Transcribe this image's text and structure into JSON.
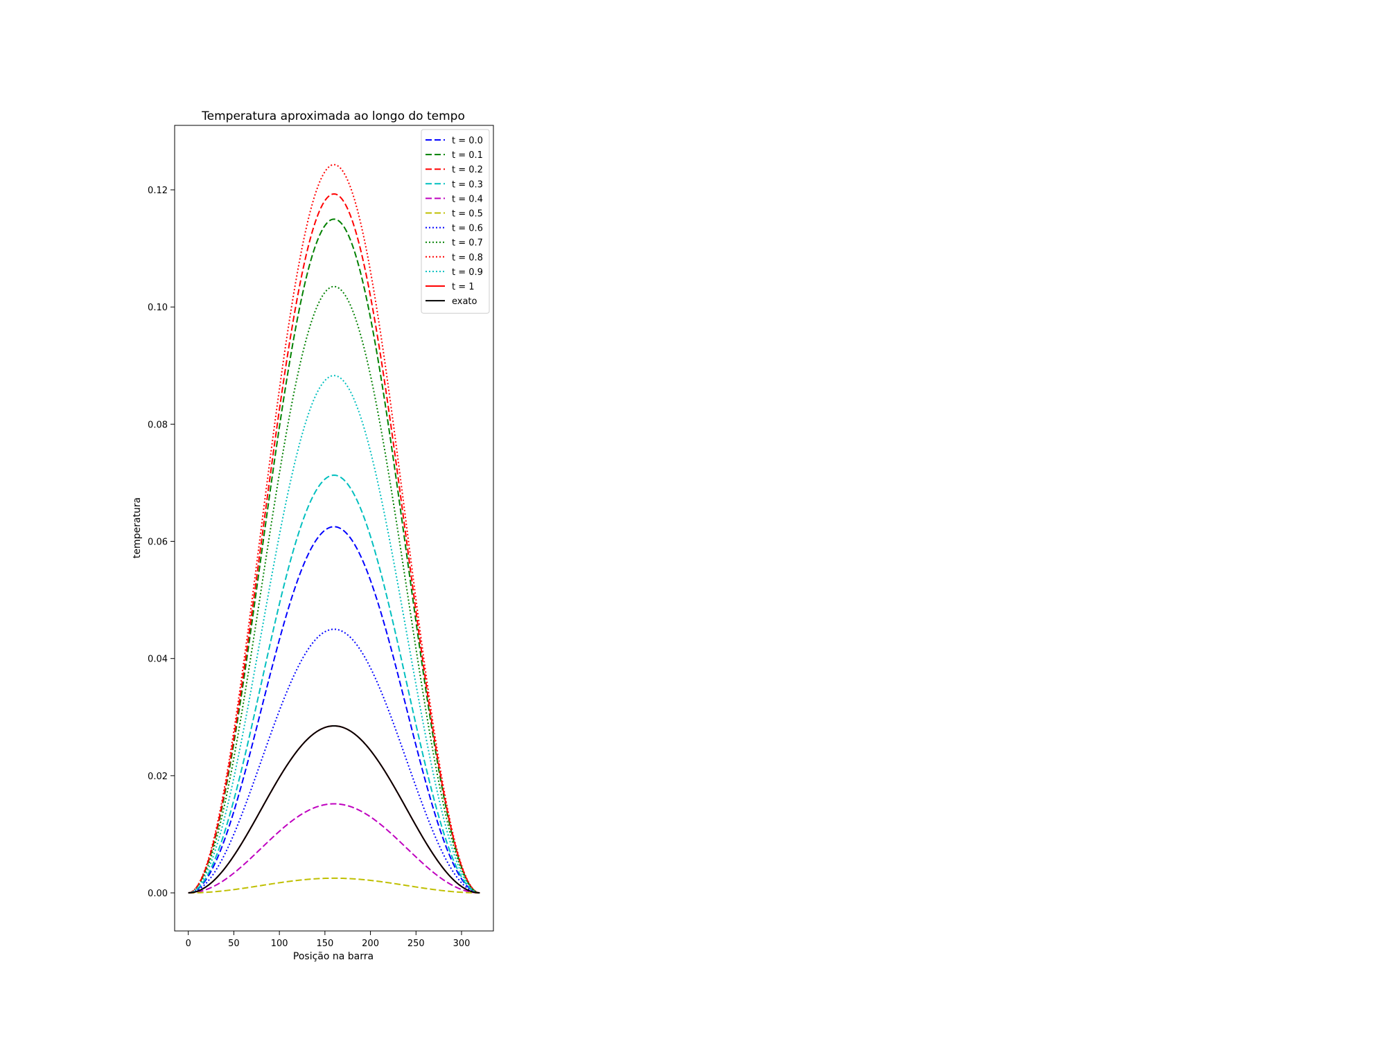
{
  "chart_data": {
    "type": "line",
    "title": "Temperatura aproximada ao longo do tempo",
    "xlabel": "Posição na barra",
    "ylabel": "temperatura",
    "xlim": [
      -15,
      335
    ],
    "ylim": [
      -0.0065,
      0.131
    ],
    "xticks": [
      0,
      50,
      100,
      150,
      200,
      250,
      300
    ],
    "yticks": [
      0.0,
      0.02,
      0.04,
      0.06,
      0.08,
      0.1,
      0.12
    ],
    "ytick_labels": [
      "0.00",
      "0.02",
      "0.04",
      "0.06",
      "0.08",
      "0.10",
      "0.12"
    ],
    "x_range": [
      0,
      320
    ],
    "profile": "sin^2",
    "legend_position": "top-right",
    "grid": false,
    "series": [
      {
        "name": "t = 0.0",
        "peak": 0.0625,
        "color": "#0000ff",
        "style": "dashed"
      },
      {
        "name": "t = 0.1",
        "peak": 0.115,
        "color": "#008000",
        "style": "dashed"
      },
      {
        "name": "t = 0.2",
        "peak": 0.1193,
        "color": "#ff0000",
        "style": "dashed"
      },
      {
        "name": "t = 0.3",
        "peak": 0.0713,
        "color": "#00bfbf",
        "style": "dashed"
      },
      {
        "name": "t = 0.4",
        "peak": 0.0152,
        "color": "#bf00bf",
        "style": "dashed"
      },
      {
        "name": "t = 0.5",
        "peak": 0.0025,
        "color": "#bfbf00",
        "style": "dashed"
      },
      {
        "name": "t = 0.6",
        "peak": 0.045,
        "color": "#0000ff",
        "style": "dotted"
      },
      {
        "name": "t = 0.7",
        "peak": 0.1035,
        "color": "#008000",
        "style": "dotted"
      },
      {
        "name": "t = 0.8",
        "peak": 0.1243,
        "color": "#ff0000",
        "style": "dotted"
      },
      {
        "name": "t = 0.9",
        "peak": 0.0883,
        "color": "#00bfbf",
        "style": "dotted"
      },
      {
        "name": "t = 1",
        "peak": 0.0285,
        "color": "#ff0000",
        "style": "solid"
      },
      {
        "name": "exato",
        "peak": 0.0285,
        "color": "#000000",
        "style": "solid"
      }
    ]
  }
}
